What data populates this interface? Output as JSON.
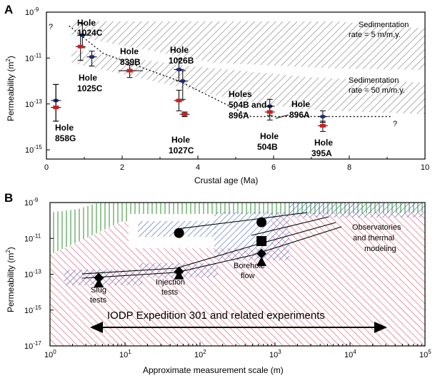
{
  "chart_data": [
    {
      "panel": "A",
      "type": "scatter",
      "xlabel": "Crustal age (Ma)",
      "ylabel": "Permeability (m",
      "ylabel_sup": "2",
      "ylabel_close": ")",
      "xlim": [
        0,
        10
      ],
      "ylim_log10": [
        -15.4,
        -9
      ],
      "x_ticks": [
        "0",
        "2",
        "4",
        "6",
        "8",
        "10"
      ],
      "y_ticks": [
        {
          "base": "10",
          "exp": "-9",
          "value_log10": -9
        },
        {
          "base": "10",
          "exp": "-11",
          "value_log10": -11
        },
        {
          "base": "10",
          "exp": "-13",
          "value_log10": -13
        },
        {
          "base": "10",
          "exp": "-15",
          "value_log10": -15
        }
      ],
      "series": [
        {
          "marker": "blue-ellipse",
          "color": "#1f2a78",
          "points": [
            {
              "x": 0.25,
              "y_log10": -12.85,
              "err_low": -13.75,
              "err_high": -12.15
            },
            {
              "x": 0.95,
              "y_log10": -10.0,
              "err_low": -10.55,
              "err_high": -9.5
            },
            {
              "x": 1.2,
              "y_log10": -10.95,
              "err_low": -11.35,
              "err_high": -10.7
            },
            {
              "x": 3.5,
              "y_log10": -11.5,
              "err_low": -12.0,
              "err_high": -11.05
            },
            {
              "x": 3.6,
              "y_log10": -12.0,
              "err_low": -12.8,
              "err_high": -11.55
            },
            {
              "x": 5.9,
              "y_log10": -13.1,
              "err_low": -13.5,
              "err_high": -12.8
            },
            {
              "x": 7.3,
              "y_log10": -13.55,
              "err_low": -13.8,
              "err_high": -13.3
            }
          ]
        },
        {
          "marker": "red-square",
          "color": "#cc1f1f",
          "points": [
            {
              "x": 0.25,
              "y_log10": -13.15,
              "err_low": -13.75,
              "err_high": -12.15
            },
            {
              "x": 0.9,
              "y_log10": -10.5,
              "err_low": -11.1,
              "err_high": -10.0
            },
            {
              "x": 2.2,
              "y_log10": -11.55,
              "err_low": -11.85,
              "err_high": -11.3,
              "xerr": [
                1.9,
                2.55
              ]
            },
            {
              "x": 3.5,
              "y_log10": -12.85,
              "err_low": -13.3,
              "err_high": -12.4
            },
            {
              "x": 3.65,
              "y_log10": -13.45,
              "err_low": -13.55,
              "err_high": -13.35
            },
            {
              "x": 5.9,
              "y_log10": -13.35,
              "err_low": -13.7,
              "err_high": -13.1
            },
            {
              "x": 7.3,
              "y_log10": -13.95,
              "err_low": -14.2,
              "err_high": -13.75
            }
          ]
        }
      ],
      "trend_line": {
        "style": "dotted",
        "points": [
          [
            0.6,
            -9.6
          ],
          [
            1.5,
            -10.8
          ],
          [
            3.5,
            -12.0
          ],
          [
            5.4,
            -13.55
          ],
          [
            9.1,
            -13.55
          ]
        ]
      },
      "question_marks": [
        "?",
        "?"
      ],
      "bands": [
        {
          "label": "Sedimentation\nrate = 5 m/m.y.",
          "kind": "hatched-gray"
        },
        {
          "label": "Sedimentation\nrate = 50 m/m.y.",
          "kind": "hatched-gray"
        }
      ],
      "annotations": [
        {
          "lines": [
            "Hole",
            "1024C"
          ]
        },
        {
          "lines": [
            "Hole",
            "839B"
          ]
        },
        {
          "lines": [
            "Hole",
            "1026B"
          ]
        },
        {
          "lines": [
            "Holes",
            "504B and",
            "896A"
          ]
        },
        {
          "lines": [
            "Hole",
            "896A"
          ]
        },
        {
          "lines": [
            "Hole",
            "858G"
          ]
        },
        {
          "lines": [
            "Hole",
            "1025C"
          ]
        },
        {
          "lines": [
            "Hole",
            "1027C"
          ]
        },
        {
          "lines": [
            "Hole",
            "504B"
          ]
        },
        {
          "lines": [
            "Hole",
            "395A"
          ]
        }
      ]
    },
    {
      "panel": "B",
      "type": "scatter",
      "xlabel": "Approximate measurement scale (m)",
      "ylabel": "Permeability (m",
      "ylabel_sup": "2",
      "ylabel_close": ")",
      "xlim_log10": [
        0,
        5
      ],
      "ylim_log10": [
        -17,
        -9
      ],
      "x_ticks": [
        {
          "base": "10",
          "exp": "0",
          "value_log10": 0
        },
        {
          "base": "10",
          "exp": "1",
          "value_log10": 1
        },
        {
          "base": "10",
          "exp": "2",
          "value_log10": 2
        },
        {
          "base": "10",
          "exp": "3",
          "value_log10": 3
        },
        {
          "base": "10",
          "exp": "4",
          "value_log10": 4
        },
        {
          "base": "10",
          "exp": "5",
          "value_log10": 5
        }
      ],
      "y_ticks": [
        {
          "base": "10",
          "exp": "-9",
          "value_log10": -9
        },
        {
          "base": "10",
          "exp": "-11",
          "value_log10": -11
        },
        {
          "base": "10",
          "exp": "-13",
          "value_log10": -13
        },
        {
          "base": "10",
          "exp": "-15",
          "value_log10": -15
        },
        {
          "base": "10",
          "exp": "-17",
          "value_log10": -17
        }
      ],
      "markers": [
        {
          "shape": "diamond",
          "x_log10": 0.65,
          "y_log10": -13.2
        },
        {
          "shape": "triangle",
          "x_log10": 0.65,
          "y_log10": -13.5
        },
        {
          "shape": "circle",
          "x_log10": 1.72,
          "y_log10": -10.7
        },
        {
          "shape": "diamond",
          "x_log10": 1.72,
          "y_log10": -12.85
        },
        {
          "shape": "triangle",
          "x_log10": 1.72,
          "y_log10": -13.05
        },
        {
          "shape": "circle",
          "x_log10": 2.82,
          "y_log10": -10.1
        },
        {
          "shape": "square",
          "x_log10": 2.82,
          "y_log10": -11.15
        },
        {
          "shape": "diamond",
          "x_log10": 2.82,
          "y_log10": -11.85
        },
        {
          "shape": "triangle",
          "x_log10": 2.82,
          "y_log10": -12.3
        }
      ],
      "arrow": {
        "label": "IODP Expedition 301 and related experiments",
        "x_from_log10": 0.55,
        "x_to_log10": 4.35,
        "y_log10": -15.8
      },
      "annotations": [
        {
          "lines": [
            "Slug",
            "tests"
          ]
        },
        {
          "lines": [
            "Injection",
            "tests"
          ]
        },
        {
          "lines": [
            "Borehole",
            "flow"
          ]
        },
        {
          "lines": [
            "Observatories",
            "and thermal",
            "modeling"
          ]
        }
      ]
    }
  ]
}
